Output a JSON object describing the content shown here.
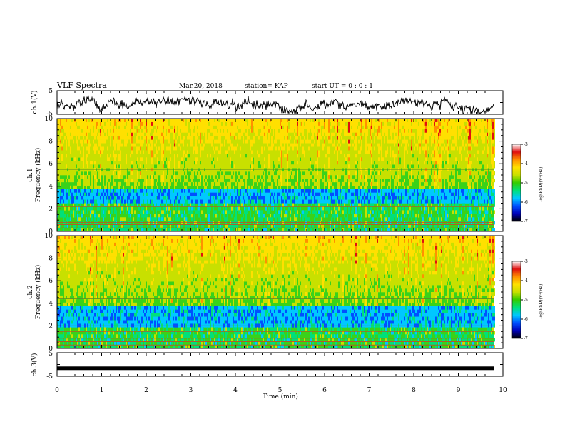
{
  "header": {
    "title": "VLF Spectra",
    "date": "Mar.20, 2018",
    "station": "station= KAP",
    "start": "start  UT  =   0 : 0  : 1"
  },
  "chart_data": [
    {
      "type": "line",
      "panel": "ch1-waveform",
      "ylabel": "ch.1(V)",
      "ylim": [
        -5,
        5
      ],
      "yticks": [
        "5",
        "-5"
      ],
      "xlim": [
        0,
        10
      ],
      "x_extent_min": [
        0,
        9.8
      ]
    },
    {
      "type": "heatmap",
      "panel": "ch1-spectrogram",
      "ylabel_line1": "ch.1",
      "ylabel_line2": "Frequency (kHz)",
      "ylim": [
        0,
        10
      ],
      "yticks": [
        "0",
        "2",
        "4",
        "6",
        "8",
        "10"
      ],
      "xlim": [
        0,
        10
      ],
      "x_extent_min": [
        0,
        9.8
      ],
      "low_power_band_khz": [
        2.5,
        3.6
      ],
      "horizontal_lines_khz": [
        0.3,
        0.6,
        0.8,
        2.2,
        5.5
      ],
      "colorbar": {
        "label": "log(PSD)(V²/Hz)",
        "ticks": [
          "-3",
          "-4",
          "-5",
          "-6",
          "-7"
        ],
        "range": [
          -7,
          -3
        ],
        "colors": [
          "#000000",
          "#0000b8",
          "#0050ff",
          "#00c8ff",
          "#00e07a",
          "#33cc00",
          "#c8e000",
          "#ffe000",
          "#ff9000",
          "#e01010",
          "#ffffff"
        ]
      }
    },
    {
      "type": "heatmap",
      "panel": "ch2-spectrogram",
      "ylabel_line1": "ch.2",
      "ylabel_line2": "Frequency (kHz)",
      "ylim": [
        0,
        10
      ],
      "yticks": [
        "0",
        "2",
        "4",
        "6",
        "8",
        "10"
      ],
      "xlim": [
        0,
        10
      ],
      "x_extent_min": [
        0,
        9.8
      ],
      "low_power_band_khz": [
        2.0,
        3.8
      ],
      "horizontal_lines_khz": [
        0.3,
        0.6,
        0.9,
        1.5,
        2.0,
        4.4
      ],
      "colorbar": {
        "label": "log(PSD)(V²/Hz)",
        "ticks": [
          "-3",
          "-4",
          "-5",
          "-6",
          "-7"
        ],
        "range": [
          -7,
          -3
        ],
        "colors": [
          "#000000",
          "#0000b8",
          "#0050ff",
          "#00c8ff",
          "#00e07a",
          "#33cc00",
          "#c8e000",
          "#ffe000",
          "#ff9000",
          "#e01010",
          "#ffffff"
        ]
      }
    },
    {
      "type": "line",
      "panel": "ch3-waveform",
      "ylabel": "ch.3(V)",
      "ylim": [
        -5,
        5
      ],
      "yticks": [
        "5",
        "-5"
      ],
      "constant_value_v": -1.6,
      "xlim": [
        0,
        10
      ],
      "x_extent_min": [
        0,
        9.8
      ],
      "xticks": [
        "0",
        "1",
        "2",
        "3",
        "4",
        "5",
        "6",
        "7",
        "8",
        "9",
        "10"
      ],
      "xlabel": "Time (min)"
    }
  ]
}
